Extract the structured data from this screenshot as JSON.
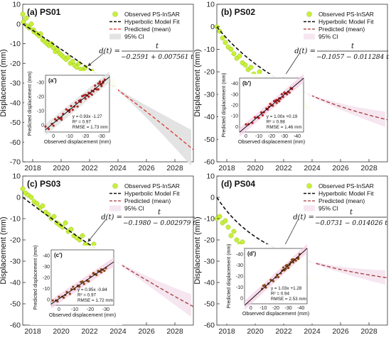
{
  "figure": {
    "ylabel": "Displacement (mm)",
    "legend": {
      "observed": "Observed PS-InSAR",
      "fit": "Hyperbolic Model Fit",
      "predicted": "Predicted (mean)",
      "ci": "95% CI"
    },
    "inset_xlabel": "Observed displacement (mm)",
    "inset_ylabel": "Predicted displacement (mm)"
  },
  "chart_data": [
    {
      "type": "scatter",
      "title": "(a) PS01",
      "ylabel": "Displacement (mm)",
      "xlim": [
        2017.3,
        2029.3
      ],
      "ylim": [
        -70,
        10
      ],
      "xticks": [
        2018,
        2020,
        2022,
        2024,
        2026,
        2028
      ],
      "yticks": [
        10,
        0,
        -10,
        -20,
        -30,
        -40,
        -50,
        -60,
        -70
      ],
      "grid": false,
      "legend_position": "top-right",
      "equation": {
        "lhs": "d(t) =",
        "numerator": "t",
        "denominator": "−0.2591 + 0.007561 t"
      },
      "model": {
        "a": -0.2591,
        "b": 0.007561,
        "t0": 2017.3,
        "obs_end": 2023.9
      },
      "ci_halfwidth_end": 9,
      "observed": {
        "x": [
          2017.3,
          2017.35,
          2017.55,
          2017.6,
          2017.75,
          2017.9,
          2018.05,
          2018.1,
          2018.3,
          2018.45,
          2018.55,
          2018.7,
          2018.85,
          2019.0,
          2019.15,
          2019.3,
          2019.45,
          2019.6,
          2019.75,
          2019.9,
          2020.05,
          2020.2,
          2020.35,
          2020.5,
          2020.65,
          2020.8,
          2020.95,
          2021.1,
          2021.25,
          2021.4,
          2021.55,
          2021.7,
          2021.85,
          2022.0,
          2022.15,
          2022.3,
          2022.45,
          2022.55,
          2022.7,
          2022.85,
          2023.0,
          2023.15,
          2023.3,
          2023.45,
          2023.6,
          2023.75
        ],
        "y": [
          5,
          1,
          3,
          -1,
          -2,
          0,
          -3,
          -4,
          -5,
          -6,
          -5,
          -8,
          -9,
          -10,
          -11,
          -10,
          -12,
          -14,
          -13,
          -15,
          -16,
          -17,
          -18,
          -17,
          -20,
          -19,
          -21,
          -22,
          -20,
          -23,
          -24,
          -22,
          -25,
          -26,
          -24,
          -27,
          -28,
          -26,
          -30,
          -29,
          -31,
          -28,
          -32,
          -30,
          -29,
          -31
        ]
      },
      "inset": {
        "label": "(a')",
        "xlim": [
          5,
          -35
        ],
        "ylim": [
          -35,
          5
        ],
        "xticks": [
          0,
          -10,
          -20,
          -30
        ],
        "yticks": [
          0,
          -10,
          -20,
          -30
        ],
        "stats": [
          "y = 0.93x -1.27",
          "R² = 0.97",
          "RMSE = 1.73 mm"
        ],
        "slope": 0.93,
        "intercept": -1.27,
        "point_color": "#b22222"
      }
    },
    {
      "type": "scatter",
      "title": "(b) PS02",
      "ylabel": "Displacement (mm)",
      "xlim": [
        2017.3,
        2029.3
      ],
      "ylim": [
        -60,
        10
      ],
      "xticks": [
        2018,
        2020,
        2022,
        2024,
        2026,
        2028
      ],
      "yticks": [
        10,
        0,
        -10,
        -20,
        -30,
        -40,
        -50,
        -60
      ],
      "grid": false,
      "legend_position": "top-right",
      "equation": {
        "lhs": "d(t) =",
        "numerator": "t",
        "denominator": "−0.1057 − 0.011284 t"
      },
      "model": {
        "a": -0.1057,
        "b": -0.011284,
        "t0": 2017.3,
        "obs_end": 2023.9,
        "fitted_scale": 0.83
      },
      "ci_halfwidth_end": 3,
      "observed": {
        "x": [
          2017.3,
          2017.5,
          2017.7,
          2017.9,
          2018.1,
          2018.3,
          2018.5,
          2018.7,
          2018.9,
          2019.1,
          2019.3,
          2019.5,
          2019.7,
          2019.9,
          2020.1,
          2020.3,
          2020.5,
          2020.7,
          2020.9,
          2021.1,
          2021.3,
          2021.5,
          2021.7,
          2021.9,
          2022.1,
          2022.3,
          2022.5,
          2022.7,
          2022.9,
          2023.1,
          2023.3,
          2023.5,
          2023.7
        ],
        "y": [
          0,
          -2,
          -5,
          -7,
          -9,
          -10,
          -12,
          -14,
          -13,
          -16,
          -17,
          -19,
          -18,
          -21,
          -22,
          -20,
          -24,
          -23,
          -25,
          -26,
          -24,
          -27,
          -28,
          -26,
          -29,
          -30,
          -31,
          -32,
          -30,
          -33,
          -34,
          -35,
          -36
        ]
      },
      "inset": {
        "label": "(b')",
        "xlim": [
          5,
          -45
        ],
        "ylim": [
          -45,
          5
        ],
        "xticks": [
          0,
          -10,
          -20,
          -30,
          -40
        ],
        "yticks": [
          0,
          -10,
          -20,
          -30,
          -40
        ],
        "stats": [
          "y = 1.00x +0.19",
          "R² = 0.98",
          "RMSE = 1.46 mm"
        ],
        "slope": 1.0,
        "intercept": 0.19,
        "point_color": "#b22222"
      }
    },
    {
      "type": "scatter",
      "title": "(c) PS03",
      "ylabel": "Displacement (mm)",
      "xlim": [
        2017.3,
        2029.3
      ],
      "ylim": [
        -60,
        10
      ],
      "xticks": [
        2018,
        2020,
        2022,
        2024,
        2026,
        2028
      ],
      "yticks": [
        10,
        0,
        -10,
        -20,
        -30,
        -40,
        -50,
        -60
      ],
      "grid": false,
      "legend_position": "top-right",
      "equation": {
        "lhs": "d(t) =",
        "numerator": "t",
        "denominator": "−0.1980 − 0.002979 t"
      },
      "model": {
        "a": -0.198,
        "b": -0.002979,
        "t0": 2017.3,
        "obs_end": 2023.9,
        "fitted_scale": 1.0
      },
      "ci_halfwidth_end": 5,
      "observed": {
        "x": [
          2017.3,
          2017.5,
          2017.7,
          2017.9,
          2018.1,
          2018.3,
          2018.5,
          2018.7,
          2018.9,
          2019.1,
          2019.3,
          2019.5,
          2019.7,
          2019.9,
          2020.1,
          2020.3,
          2020.5,
          2020.7,
          2020.9,
          2021.1,
          2021.3,
          2021.5,
          2021.7,
          2021.9,
          2022.1,
          2022.3,
          2022.5,
          2022.7,
          2022.9,
          2023.1,
          2023.3,
          2023.5,
          2023.7
        ],
        "y": [
          4,
          2,
          1,
          0,
          -2,
          -3,
          -5,
          -4,
          -7,
          -8,
          -10,
          -9,
          -12,
          -13,
          -14,
          -12,
          -16,
          -15,
          -18,
          -19,
          -20,
          -18,
          -22,
          -23,
          -24,
          -22,
          -26,
          -27,
          -25,
          -28,
          -29,
          -27,
          -30
        ]
      },
      "inset": {
        "label": "(c')",
        "xlim": [
          5,
          -35
        ],
        "ylim": [
          -45,
          5
        ],
        "xticks": [
          0,
          -10,
          -20,
          -30
        ],
        "yticks": [
          0,
          -10,
          -20,
          -30,
          -40
        ],
        "stats": [
          "y = 0.95x -0.84",
          "R² = 0.97",
          "RMSE = 1.72 mm"
        ],
        "slope": 0.95,
        "intercept": -0.84,
        "point_color": "#8b4513"
      }
    },
    {
      "type": "scatter",
      "title": "(d) PS04",
      "ylabel": "Displacement (mm)",
      "xlim": [
        2017.3,
        2029.3
      ],
      "ylim": [
        -60,
        10
      ],
      "xticks": [
        2018,
        2020,
        2022,
        2024,
        2026,
        2028
      ],
      "yticks": [
        10,
        0,
        -10,
        -20,
        -30,
        -40,
        -50,
        -60
      ],
      "grid": false,
      "legend_position": "top-right",
      "equation": {
        "lhs": "d(t) =",
        "numerator": "t",
        "denominator": "−0.0731 − 0.014026 t"
      },
      "model": {
        "a": -0.0731,
        "b": -0.014026,
        "t0": 2017.3,
        "obs_end": 2023.9,
        "fitted_scale": 0.76
      },
      "ci_halfwidth_end": 3,
      "observed": {
        "x": [
          2017.3,
          2017.5,
          2017.7,
          2017.9,
          2018.1,
          2018.3,
          2018.5,
          2018.7,
          2018.9,
          2019.1,
          2019.3,
          2019.5,
          2019.7,
          2019.9,
          2020.1,
          2020.3,
          2020.5,
          2020.7,
          2020.9,
          2021.1,
          2021.3,
          2021.5,
          2021.7,
          2021.9,
          2022.1,
          2022.3,
          2022.5,
          2022.7,
          2022.9,
          2023.1,
          2023.3,
          2023.5,
          2023.7
        ],
        "y": [
          -10,
          -9,
          -12,
          -11,
          -14,
          -18,
          -16,
          -20,
          -22,
          -21,
          -24,
          -26,
          -25,
          -27,
          -28,
          -26,
          -30,
          -29,
          -31,
          -30,
          -32,
          -28,
          -33,
          -31,
          -34,
          -33,
          -35,
          -36,
          -34,
          -37,
          -38,
          -39,
          -38
        ]
      },
      "inset": {
        "label": "(d')",
        "xlim": [
          5,
          -45
        ],
        "ylim": [
          -45,
          5
        ],
        "xticks": [
          0,
          -10,
          -20,
          -30,
          -40
        ],
        "yticks": [
          0,
          -10,
          -20,
          -30,
          -40
        ],
        "stats": [
          "y = 1.03x +1.28",
          "R² = 0.94",
          "RMSE = 2.53 mm"
        ],
        "slope": 1.03,
        "intercept": 1.28,
        "point_color": "#8b4513"
      }
    }
  ]
}
